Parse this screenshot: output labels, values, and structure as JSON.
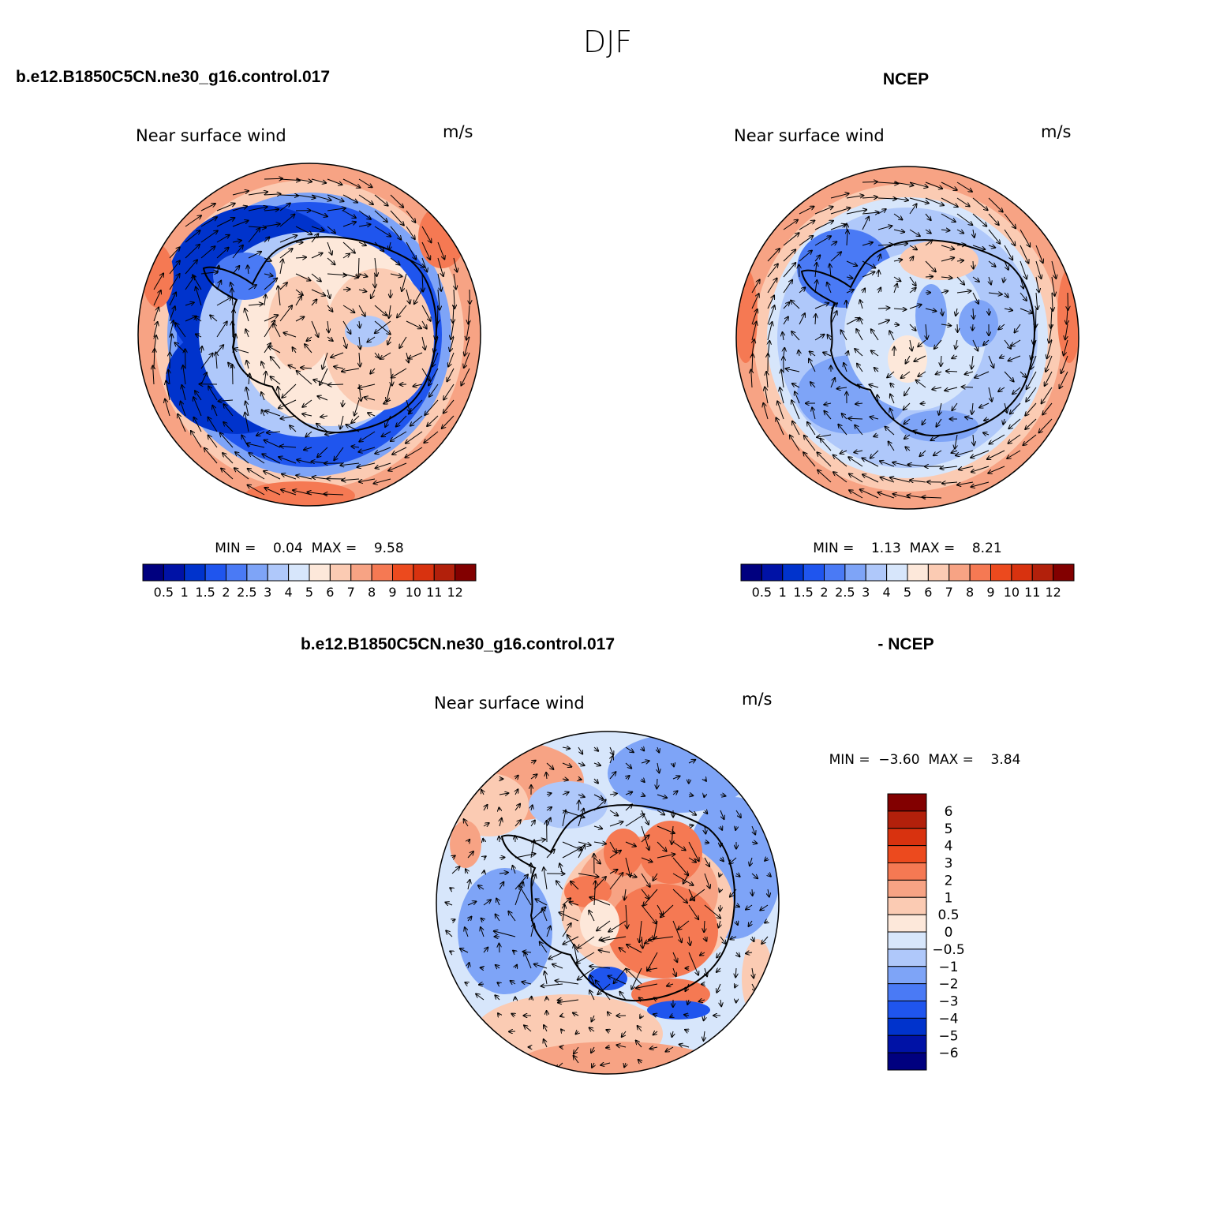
{
  "figure": {
    "main_title": "DJF",
    "colors": {
      "scale": [
        "#00007f",
        "#0012a6",
        "#0033cc",
        "#1f55ee",
        "#4a7af5",
        "#7ea4f7",
        "#afc8fa",
        "#d7e6fb",
        "#fde8da",
        "#fbcbb3",
        "#f7a384",
        "#f57953",
        "#ec4a1e",
        "#d8320f",
        "#b2200b",
        "#820000"
      ],
      "diff_scale": [
        "#00007f",
        "#0012a6",
        "#0033cc",
        "#1f55ee",
        "#4a7af5",
        "#7ea4f7",
        "#afc8fa",
        "#d7e6fb",
        "#fde8da",
        "#fbcbb3",
        "#f7a384",
        "#f57953",
        "#ec4a1e",
        "#d8320f",
        "#b2200b",
        "#820000"
      ]
    },
    "panels": [
      {
        "id": "model",
        "header_left": "b.e12.B1850C5CN.ne30_g16.control.017",
        "header_right": "",
        "subtitle": "Near surface wind",
        "units": "m/s",
        "min_max": "MIN =    0.04  MAX =    9.58",
        "colorbar_labels": [
          "0.5",
          "1",
          "1.5",
          "2",
          "2.5",
          "3",
          "4",
          "5",
          "6",
          "7",
          "8",
          "9",
          "10",
          "11",
          "12"
        ]
      },
      {
        "id": "ncep",
        "header_left": "",
        "header_right": "NCEP",
        "subtitle": "Near surface wind",
        "units": "m/s",
        "min_max": "MIN =    1.13  MAX =    8.21",
        "colorbar_labels": [
          "0.5",
          "1",
          "1.5",
          "2",
          "2.5",
          "3",
          "4",
          "5",
          "6",
          "7",
          "8",
          "9",
          "10",
          "11",
          "12"
        ]
      },
      {
        "id": "diff",
        "header_left": "b.e12.B1850C5CN.ne30_g16.control.017",
        "header_right": "- NCEP",
        "subtitle": "Near surface wind",
        "units": "m/s",
        "min_max": "MIN =  −3.60  MAX =    3.84",
        "colorbar_labels": [
          "6",
          "5",
          "4",
          "3",
          "2",
          "1",
          "0.5",
          "0",
          "−0.5",
          "−1",
          "−2",
          "−3",
          "−4",
          "−5",
          "−6"
        ]
      }
    ]
  }
}
